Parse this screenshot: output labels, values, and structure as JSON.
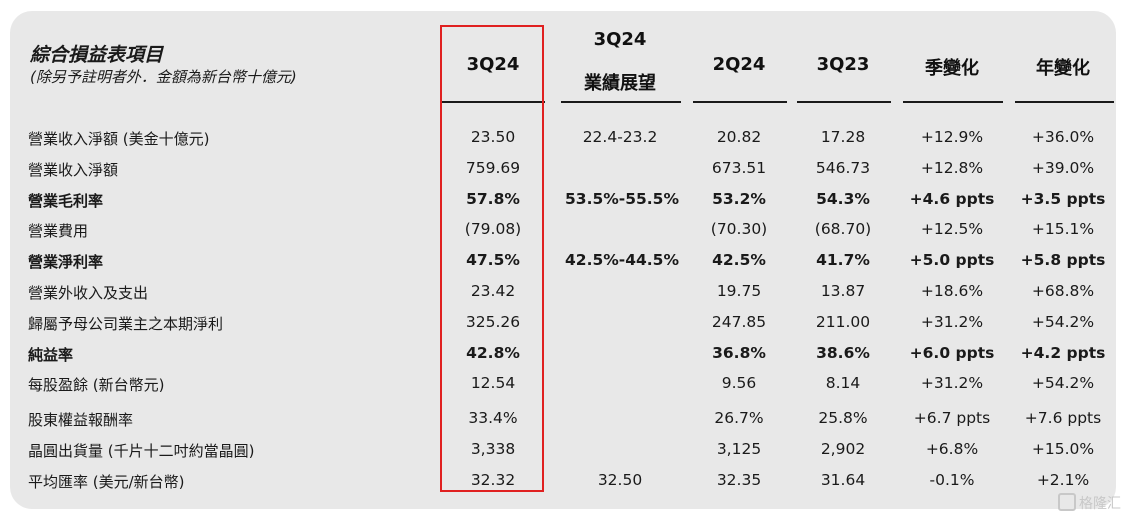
{
  "header": {
    "title": "綜合損益表項目",
    "subtitle": "(除另予註明者外．金額為新台幣十億元)"
  },
  "columns": [
    {
      "line1": "3Q24",
      "line2": ""
    },
    {
      "line1": "3Q24",
      "line2": "業績展望"
    },
    {
      "line1": "2Q24",
      "line2": ""
    },
    {
      "line1": "3Q23",
      "line2": ""
    },
    {
      "line1": "季變化",
      "line2": ""
    },
    {
      "line1": "年變化",
      "line2": ""
    }
  ],
  "rows": [
    {
      "label": "營業收入淨額 (美金十億元)",
      "bold": false,
      "cells": [
        "23.50",
        "22.4-23.2",
        "20.82",
        "17.28",
        "+12.9%",
        "+36.0%"
      ]
    },
    {
      "label": "營業收入淨額",
      "bold": false,
      "cells": [
        "759.69",
        "",
        "673.51",
        "546.73",
        "+12.8%",
        "+39.0%"
      ]
    },
    {
      "label": "營業毛利率",
      "bold": true,
      "cells": [
        "57.8%",
        "53.5%-55.5%",
        "53.2%",
        "54.3%",
        "+4.6 ppts",
        "+3.5 ppts"
      ]
    },
    {
      "label": "營業費用",
      "bold": false,
      "cells": [
        "(79.08)",
        "",
        "(70.30)",
        "(68.70)",
        "+12.5%",
        "+15.1%"
      ]
    },
    {
      "label": "營業淨利率",
      "bold": true,
      "cells": [
        "47.5%",
        "42.5%-44.5%",
        "42.5%",
        "41.7%",
        "+5.0 ppts",
        "+5.8 ppts"
      ]
    },
    {
      "label": "營業外收入及支出",
      "bold": false,
      "cells": [
        "23.42",
        "",
        "19.75",
        "13.87",
        "+18.6%",
        "+68.8%"
      ]
    },
    {
      "label": "歸屬予母公司業主之本期淨利",
      "bold": false,
      "cells": [
        "325.26",
        "",
        "247.85",
        "211.00",
        "+31.2%",
        "+54.2%"
      ]
    },
    {
      "label": "純益率",
      "bold": true,
      "cells": [
        "42.8%",
        "",
        "36.8%",
        "38.6%",
        "+6.0 ppts",
        "+4.2 ppts"
      ]
    },
    {
      "label": "每股盈餘 (新台幣元)",
      "bold": false,
      "cells": [
        "12.54",
        "",
        "9.56",
        "8.14",
        "+31.2%",
        "+54.2%"
      ]
    },
    {
      "label": "股東權益報酬率",
      "bold": false,
      "cells": [
        "33.4%",
        "",
        "26.7%",
        "25.8%",
        "+6.7 ppts",
        "+7.6 ppts"
      ]
    },
    {
      "label": "晶圓出貨量 (千片十二吋約當晶圓)",
      "bold": false,
      "cells": [
        "3,338",
        "",
        "3,125",
        "2,902",
        "+6.8%",
        "+15.0%"
      ]
    },
    {
      "label": "平均匯率 (美元/新台幣)",
      "bold": false,
      "cells": [
        "32.32",
        "32.50",
        "32.35",
        "31.64",
        "-0.1%",
        "+2.1%"
      ]
    }
  ],
  "watermark": "格隆汇",
  "colors": {
    "panel": "#e8e8e8",
    "highlight": "#e02020"
  }
}
